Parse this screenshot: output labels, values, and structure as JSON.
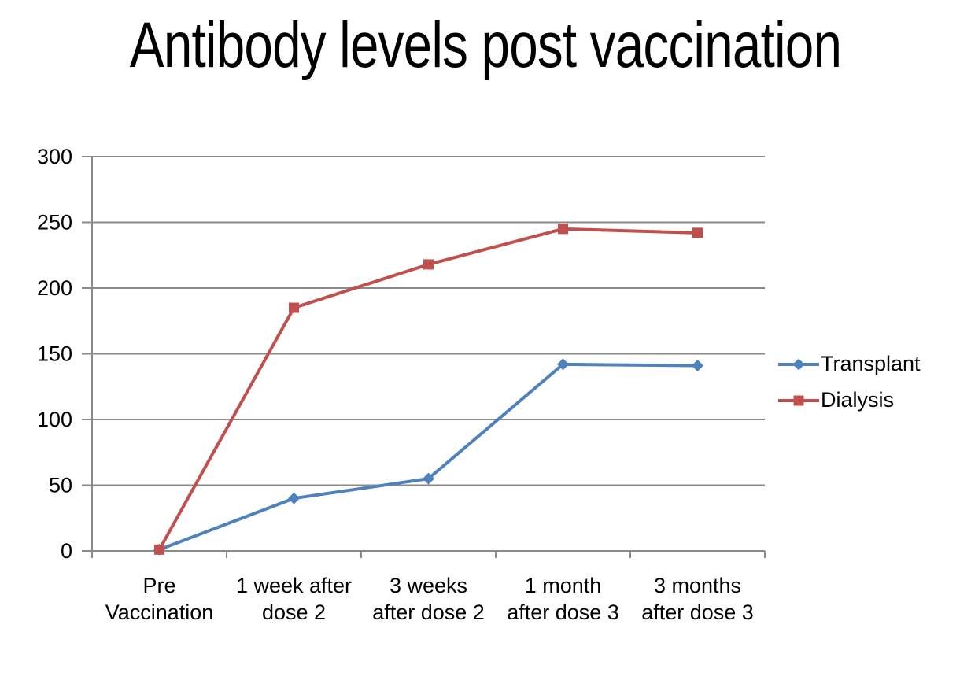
{
  "title": "Antibody levels post vaccination",
  "colors": {
    "background": "#ffffff",
    "text": "#000000",
    "gridline": "#8a8a8a",
    "axis": "#8a8a8a",
    "transplant": "#4f81bd",
    "dialysis": "#c0504d"
  },
  "chart_data": {
    "type": "line",
    "title": "Antibody levels post vaccination",
    "xlabel": "",
    "ylabel": "",
    "categories": [
      "Pre Vaccination",
      "1 week after dose 2",
      "3 weeks after dose 2",
      "1 month after dose 3",
      "3 months after dose 3"
    ],
    "category_label_lines": [
      [
        "Pre",
        "Vaccination"
      ],
      [
        "1 week after",
        "dose 2"
      ],
      [
        "3 weeks",
        "after dose 2"
      ],
      [
        "1 month",
        "after dose 3"
      ],
      [
        "3 months",
        "after dose 3"
      ]
    ],
    "series": [
      {
        "name": "Transplant",
        "color": "#4f81bd",
        "marker": "diamond",
        "values": [
          1,
          40,
          55,
          142,
          141
        ]
      },
      {
        "name": "Dialysis",
        "color": "#c0504d",
        "marker": "square",
        "values": [
          1,
          185,
          218,
          245,
          242
        ]
      }
    ],
    "ylim": [
      0,
      300
    ],
    "yticks": [
      0,
      50,
      100,
      150,
      200,
      250,
      300
    ],
    "grid": true,
    "legend_position": "right"
  }
}
